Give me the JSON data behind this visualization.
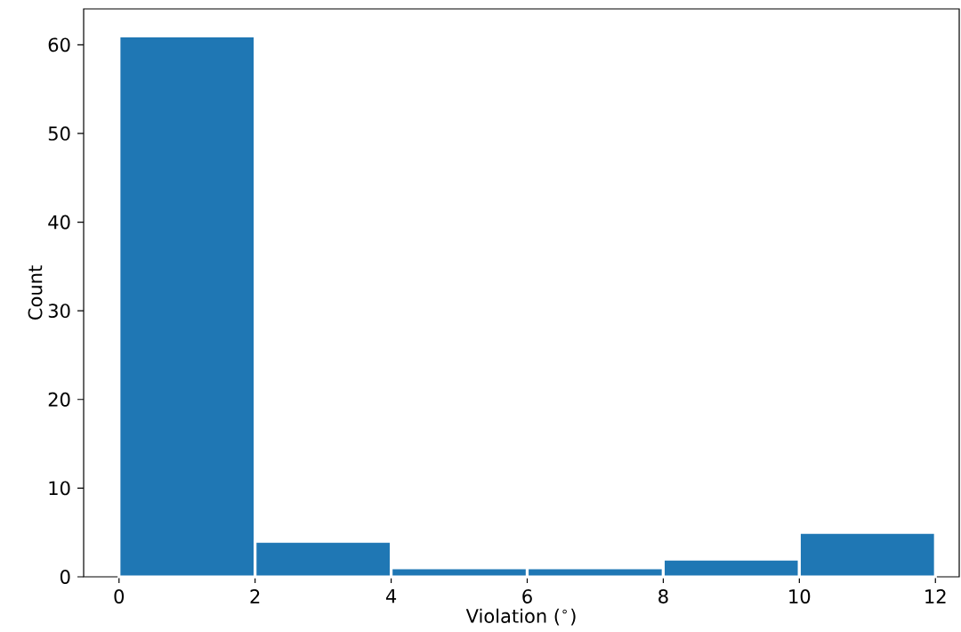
{
  "chart_data": {
    "type": "histogram",
    "xlabel": "Violation ($^{∘}$)",
    "ylabel": "Count",
    "bins": [
      0,
      2,
      4,
      6,
      8,
      10,
      12
    ],
    "values": [
      61,
      4,
      1,
      1,
      2,
      5
    ],
    "color": "#1f77b4",
    "xlim": [
      -0.52,
      12.35
    ],
    "ylim": [
      0,
      64.05
    ],
    "xticks": [
      0,
      2,
      4,
      6,
      8,
      10,
      12
    ],
    "yticks": [
      0,
      10,
      20,
      30,
      40,
      50,
      60
    ],
    "grid": false
  }
}
